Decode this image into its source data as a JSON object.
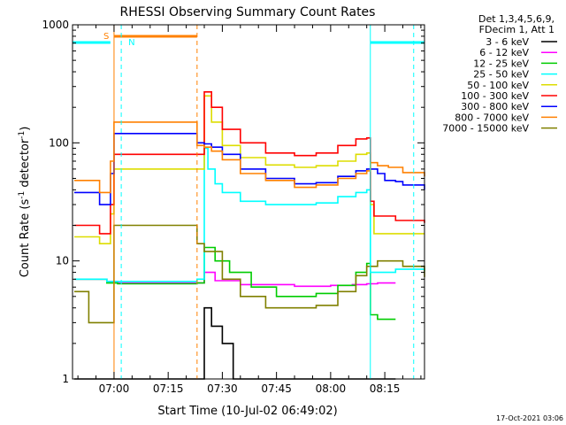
{
  "chart_data": {
    "type": "line",
    "title": "RHESSI Observing Summary Count Rates",
    "xlabel": "Start Time (10-Jul-02 06:49:02)",
    "ylabel_main": "Count Rate (s",
    "ylabel_sup1": "-1",
    "ylabel_mid": " detector",
    "ylabel_sup2": "-1",
    "ylabel_end": ")",
    "y_scale": "log",
    "ylim": [
      1,
      1000
    ],
    "xlim_minutes": [
      -11.5,
      86
    ],
    "x_tick_labels": [
      {
        "label": "07:00",
        "minute": 0
      },
      {
        "label": "07:15",
        "minute": 15
      },
      {
        "label": "07:30",
        "minute": 30
      },
      {
        "label": "07:45",
        "minute": 45
      },
      {
        "label": "08:00",
        "minute": 60
      },
      {
        "label": "08:15",
        "minute": 75
      }
    ],
    "y_tick_labels": [
      {
        "label": "1",
        "value": 1
      },
      {
        "label": "10",
        "value": 10
      },
      {
        "label": "100",
        "value": 100
      },
      {
        "label": "1000",
        "value": 1000
      }
    ],
    "grid": false,
    "legend_position": "right",
    "legend_header": [
      "Det 1,3,4,5,6,9,",
      "FDecim 1, Att 1"
    ],
    "series": [
      {
        "name": "3 - 6 keV",
        "color": "#000000",
        "points": [
          [
            -11,
            1
          ],
          [
            2,
            1
          ],
          [
            23,
            1
          ],
          [
            25,
            4
          ],
          [
            27,
            2.8
          ],
          [
            30,
            2
          ],
          [
            33,
            1
          ],
          [
            78,
            1
          ]
        ]
      },
      {
        "name": "6 - 12 keV",
        "color": "#ff00ff",
        "points": [
          [
            -11,
            7
          ],
          [
            -2,
            6.7
          ],
          [
            1,
            6.5
          ],
          [
            23,
            6.5
          ],
          [
            25,
            8
          ],
          [
            28,
            6.8
          ],
          [
            35,
            6.3
          ],
          [
            50,
            6.1
          ],
          [
            60,
            6.2
          ],
          [
            66,
            6.3
          ],
          [
            70,
            6.4
          ],
          [
            73,
            6.5
          ],
          [
            78,
            6.5
          ]
        ]
      },
      {
        "name": "12 - 25 keV",
        "color": "#00cc00",
        "points": [
          [
            -11,
            7
          ],
          [
            -2,
            6.5
          ],
          [
            1,
            6.4
          ],
          [
            23,
            6.5
          ],
          [
            25,
            13
          ],
          [
            28,
            10
          ],
          [
            32,
            8
          ],
          [
            38,
            6
          ],
          [
            45,
            5
          ],
          [
            50,
            5
          ],
          [
            56,
            5.3
          ],
          [
            62,
            6.2
          ],
          [
            67,
            8
          ],
          [
            70,
            9.5
          ],
          [
            71,
            3.5
          ],
          [
            73,
            3.2
          ],
          [
            78,
            3.2
          ]
        ]
      },
      {
        "name": "25 - 50 keV",
        "color": "#00ffff",
        "points": [
          [
            -11,
            7
          ],
          [
            -2,
            6.7
          ],
          [
            1,
            6.7
          ],
          [
            23,
            7
          ],
          [
            25,
            90
          ],
          [
            26,
            60
          ],
          [
            28,
            45
          ],
          [
            30,
            38
          ],
          [
            35,
            32
          ],
          [
            42,
            30
          ],
          [
            50,
            30
          ],
          [
            56,
            31
          ],
          [
            62,
            35
          ],
          [
            67,
            38
          ],
          [
            70,
            40
          ],
          [
            71,
            8
          ],
          [
            78,
            8.5
          ],
          [
            86,
            8.2
          ]
        ]
      },
      {
        "name": "50 - 100 keV",
        "color": "#dddd00",
        "points": [
          [
            -11,
            16
          ],
          [
            -4,
            14
          ],
          [
            -1,
            25
          ],
          [
            0,
            60
          ],
          [
            23,
            60
          ],
          [
            25,
            250
          ],
          [
            27,
            150
          ],
          [
            30,
            95
          ],
          [
            35,
            75
          ],
          [
            42,
            65
          ],
          [
            50,
            62
          ],
          [
            56,
            64
          ],
          [
            62,
            70
          ],
          [
            67,
            80
          ],
          [
            70,
            82
          ],
          [
            71,
            30
          ],
          [
            72,
            17
          ],
          [
            78,
            17
          ],
          [
            86,
            17
          ]
        ]
      },
      {
        "name": "100 - 300 keV",
        "color": "#ff0000",
        "points": [
          [
            -11,
            20
          ],
          [
            -4,
            17
          ],
          [
            -1,
            30
          ],
          [
            0,
            80
          ],
          [
            23,
            80
          ],
          [
            25,
            270
          ],
          [
            27,
            200
          ],
          [
            30,
            130
          ],
          [
            35,
            100
          ],
          [
            42,
            82
          ],
          [
            50,
            78
          ],
          [
            56,
            82
          ],
          [
            62,
            95
          ],
          [
            67,
            108
          ],
          [
            70,
            110
          ],
          [
            71,
            32
          ],
          [
            72,
            24
          ],
          [
            78,
            22
          ],
          [
            86,
            21
          ]
        ]
      },
      {
        "name": "300 - 800 keV",
        "color": "#0000ff",
        "points": [
          [
            -11,
            38
          ],
          [
            -4,
            30
          ],
          [
            -1,
            55
          ],
          [
            0,
            120
          ],
          [
            23,
            100
          ],
          [
            25,
            98
          ],
          [
            27,
            92
          ],
          [
            30,
            80
          ],
          [
            35,
            60
          ],
          [
            42,
            50
          ],
          [
            50,
            45
          ],
          [
            56,
            46
          ],
          [
            62,
            52
          ],
          [
            67,
            58
          ],
          [
            70,
            60
          ],
          [
            71,
            60
          ],
          [
            73,
            55
          ],
          [
            75,
            48
          ],
          [
            78,
            47
          ],
          [
            80,
            44
          ],
          [
            86,
            40
          ]
        ]
      },
      {
        "name": "800 - 7000 keV",
        "color": "#ff8000",
        "points": [
          [
            -11,
            48
          ],
          [
            -4,
            38
          ],
          [
            -1,
            70
          ],
          [
            0,
            150
          ],
          [
            23,
            95
          ],
          [
            25,
            92
          ],
          [
            27,
            85
          ],
          [
            30,
            72
          ],
          [
            35,
            55
          ],
          [
            42,
            48
          ],
          [
            50,
            42
          ],
          [
            56,
            44
          ],
          [
            62,
            50
          ],
          [
            67,
            55
          ],
          [
            70,
            58
          ],
          [
            71,
            68
          ],
          [
            73,
            64
          ],
          [
            76,
            62
          ],
          [
            80,
            56
          ],
          [
            86,
            52
          ]
        ]
      },
      {
        "name": "7000 - 15000 keV",
        "color": "#808000",
        "points": [
          [
            -11,
            5.5
          ],
          [
            -7,
            3
          ],
          [
            -4,
            3
          ],
          [
            -1,
            3
          ],
          [
            0,
            20
          ],
          [
            23,
            14
          ],
          [
            25,
            12
          ],
          [
            30,
            7
          ],
          [
            35,
            5
          ],
          [
            42,
            4
          ],
          [
            50,
            4
          ],
          [
            56,
            4.2
          ],
          [
            62,
            5.5
          ],
          [
            67,
            7.5
          ],
          [
            70,
            9
          ],
          [
            73,
            10
          ],
          [
            76,
            10
          ],
          [
            80,
            9
          ],
          [
            86,
            7.3
          ]
        ]
      }
    ],
    "flag_s": {
      "label": "S",
      "start": 0,
      "end": 23,
      "color": "#ff8000"
    },
    "flag_n": {
      "label": "N",
      "color": "#00ffff"
    },
    "footer_date": "17-Oct-2021 03:06"
  }
}
